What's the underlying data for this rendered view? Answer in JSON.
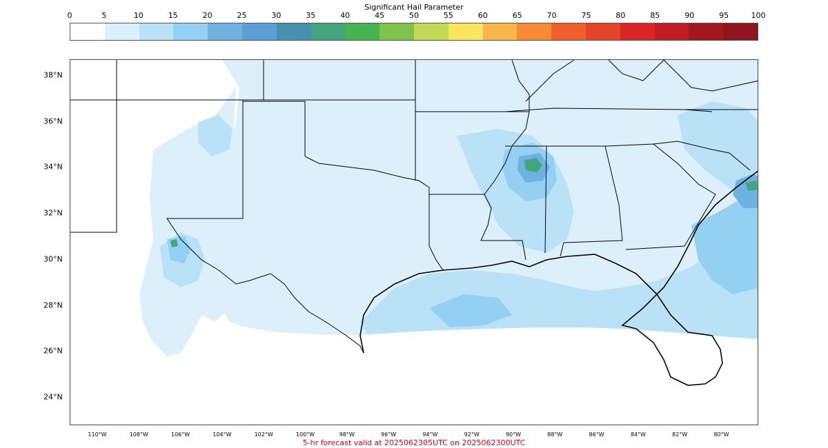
{
  "title": "Significant Hail Parameter",
  "colorbar": {
    "ticks": [
      "0",
      "5",
      "10",
      "15",
      "20",
      "25",
      "30",
      "35",
      "40",
      "45",
      "50",
      "55",
      "60",
      "65",
      "70",
      "75",
      "80",
      "85",
      "90",
      "95",
      "100"
    ],
    "colors": [
      "#ffffff",
      "#dcf0fb",
      "#b9e2f7",
      "#93d0f1",
      "#6db2e0",
      "#5b9fd6",
      "#4591ae",
      "#43a57d",
      "#45b34f",
      "#7ec34a",
      "#c1d955",
      "#fae65a",
      "#f9b648",
      "#f78a33",
      "#f05e29",
      "#e54428",
      "#d92528",
      "#c11d24",
      "#a3181f",
      "#8f141c"
    ]
  },
  "map": {
    "lat_labels": [
      "38°N",
      "36°N",
      "34°N",
      "32°N",
      "30°N",
      "28°N",
      "26°N",
      "24°N"
    ],
    "lon_labels": [
      "110°W",
      "108°W",
      "106°W",
      "104°W",
      "102°W",
      "100°W",
      "98°W",
      "96°W",
      "94°W",
      "92°W",
      "90°W",
      "88°W",
      "86°W",
      "84°W",
      "82°W",
      "80°W"
    ],
    "fill_colors": {
      "light": "#dcf0fb",
      "medium": "#b9e2f7",
      "strong": "#93d0f1",
      "deep": "#6db2e0",
      "green": "#43a57d"
    }
  },
  "footer": "5-hr forecast valid at 2025062305UTC on 2025062300UTC"
}
